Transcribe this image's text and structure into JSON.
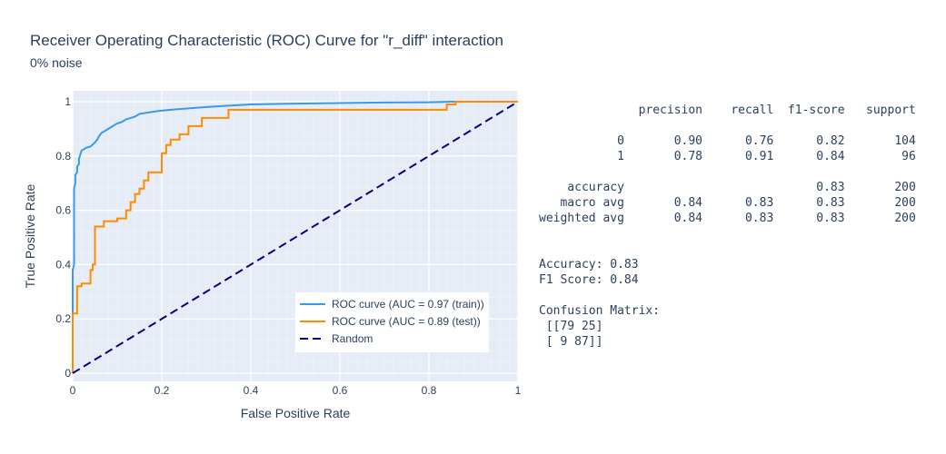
{
  "chart_data": {
    "type": "line",
    "title": "Receiver Operating Characteristic (ROC) Curve for \"r_diff\" interaction",
    "subtitle": "0% noise",
    "xlabel": "False Positive Rate",
    "ylabel": "True Positive Rate",
    "xlim": [
      0,
      1
    ],
    "ylim": [
      -0.03,
      1.04
    ],
    "xticks": [
      0,
      0.2,
      0.4,
      0.6,
      0.8,
      1
    ],
    "xtick_labels": [
      "0",
      "0.2",
      "0.4",
      "0.6",
      "0.8",
      "1"
    ],
    "yticks": [
      0,
      0.2,
      0.4,
      0.6,
      0.8,
      1
    ],
    "ytick_labels": [
      "0",
      "0.2",
      "0.4",
      "0.6",
      "0.8",
      "1"
    ],
    "grid": true,
    "legend_position": "bottom-right",
    "background": "#E5ECF6",
    "series": [
      {
        "name": "ROC curve (AUC = 0.97 (train))",
        "color": "#3A9AE8",
        "dash": "solid",
        "x": [
          0,
          0,
          0.003,
          0.003,
          0.006,
          0.006,
          0.01,
          0.01,
          0.014,
          0.014,
          0.018,
          0.02,
          0.025,
          0.03,
          0.04,
          0.05,
          0.055,
          0.06,
          0.065,
          0.07,
          0.075,
          0.08,
          0.09,
          0.1,
          0.11,
          0.12,
          0.13,
          0.14,
          0.15,
          0.17,
          0.19,
          0.22,
          0.26,
          0.3,
          0.35,
          0.4,
          0.5,
          0.6,
          0.7,
          0.8,
          0.85,
          0.9,
          1
        ],
        "y": [
          0,
          0.38,
          0.4,
          0.68,
          0.7,
          0.73,
          0.74,
          0.76,
          0.77,
          0.79,
          0.81,
          0.82,
          0.825,
          0.83,
          0.835,
          0.85,
          0.86,
          0.875,
          0.885,
          0.89,
          0.895,
          0.9,
          0.91,
          0.92,
          0.925,
          0.935,
          0.94,
          0.945,
          0.955,
          0.96,
          0.965,
          0.97,
          0.975,
          0.98,
          0.985,
          0.99,
          0.993,
          0.995,
          0.997,
          0.998,
          1,
          1,
          1
        ]
      },
      {
        "name": "ROC curve (AUC = 0.89 (test))",
        "color": "#FF8C00",
        "dash": "solid",
        "x": [
          0,
          0,
          0.01,
          0.01,
          0.02,
          0.02,
          0.03,
          0.04,
          0.04,
          0.045,
          0.045,
          0.05,
          0.05,
          0.07,
          0.07,
          0.1,
          0.1,
          0.12,
          0.12,
          0.13,
          0.13,
          0.14,
          0.14,
          0.15,
          0.15,
          0.16,
          0.16,
          0.17,
          0.17,
          0.2,
          0.2,
          0.21,
          0.21,
          0.22,
          0.22,
          0.24,
          0.24,
          0.26,
          0.26,
          0.29,
          0.29,
          0.35,
          0.35,
          0.84,
          0.84,
          0.86,
          0.86,
          1
        ],
        "y": [
          0,
          0.22,
          0.22,
          0.32,
          0.32,
          0.33,
          0.33,
          0.33,
          0.38,
          0.38,
          0.4,
          0.4,
          0.54,
          0.54,
          0.56,
          0.56,
          0.57,
          0.57,
          0.6,
          0.6,
          0.63,
          0.63,
          0.66,
          0.66,
          0.68,
          0.68,
          0.71,
          0.71,
          0.74,
          0.74,
          0.81,
          0.81,
          0.84,
          0.84,
          0.86,
          0.86,
          0.88,
          0.88,
          0.91,
          0.91,
          0.94,
          0.94,
          0.97,
          0.97,
          0.99,
          0.99,
          1,
          1
        ]
      },
      {
        "name": "Random",
        "color": "#000080",
        "dash": "dash",
        "x": [
          0,
          1
        ],
        "y": [
          0,
          1
        ]
      }
    ]
  },
  "report_lines": [
    "              precision    recall  f1-score   support",
    "",
    "           0       0.90      0.76      0.82       104",
    "           1       0.78      0.91      0.84        96",
    "",
    "    accuracy                           0.83       200",
    "   macro avg       0.84      0.83      0.83       200",
    "weighted avg       0.84      0.83      0.83       200",
    "",
    "",
    "Accuracy: 0.83",
    "F1 Score: 0.84",
    "",
    "Confusion Matrix:",
    " [[79 25]",
    " [ 9 87]]"
  ]
}
